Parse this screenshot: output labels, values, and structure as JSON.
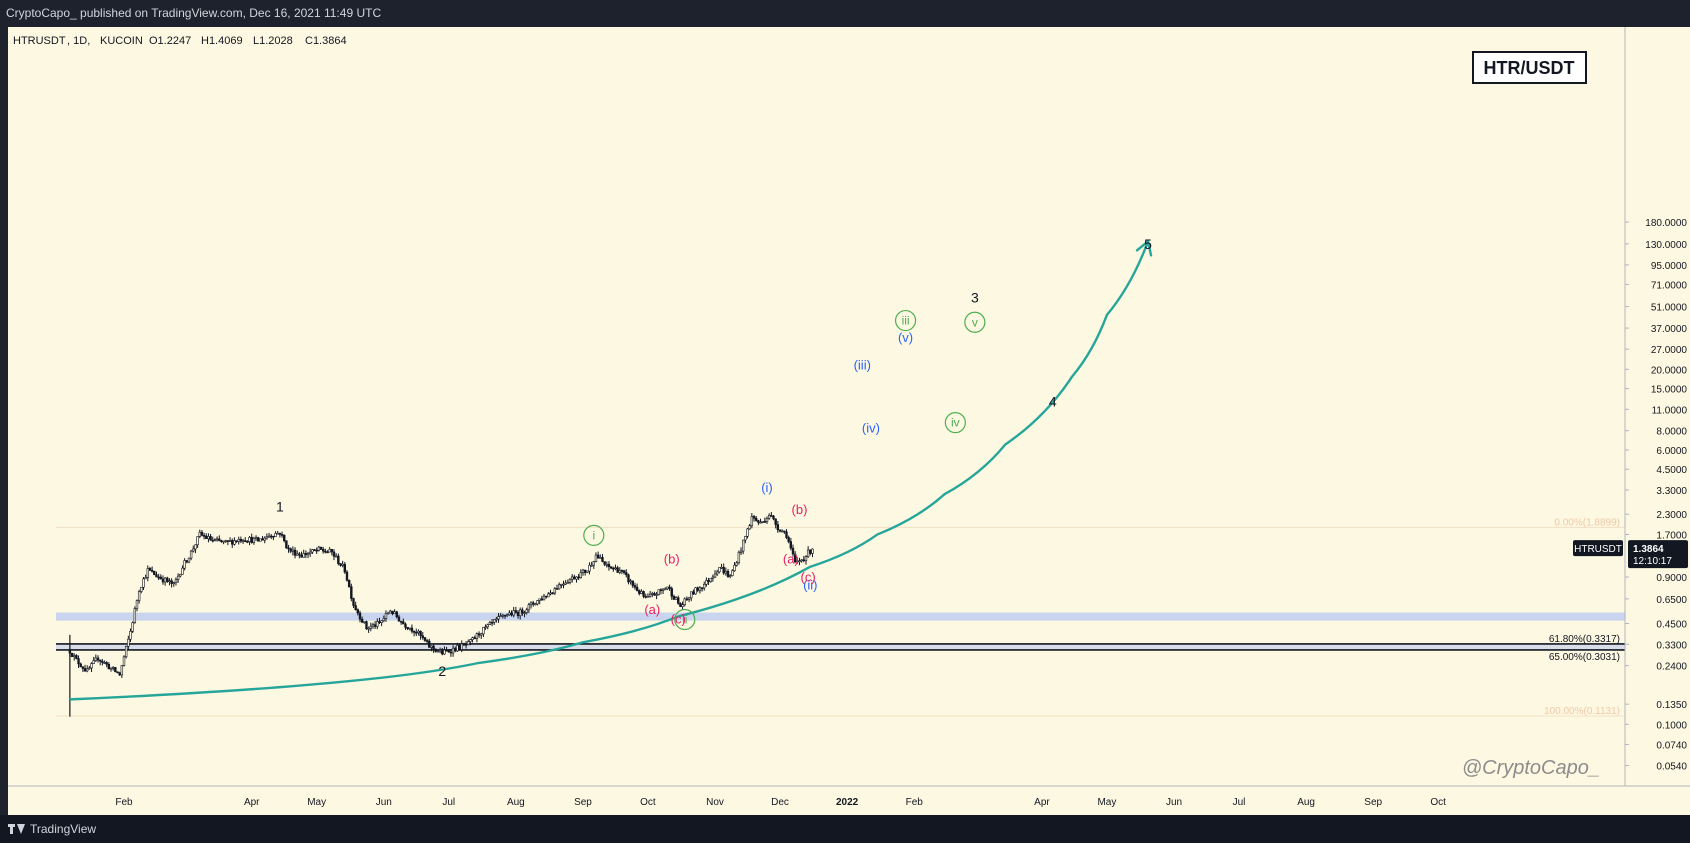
{
  "header": {
    "published_text": "CryptoCapo_ published on TradingView.com, Dec 16, 2021 11:49 UTC"
  },
  "footer": {
    "brand": "TradingView"
  },
  "symbol": {
    "name": "HTRUSDT",
    "interval": "1D",
    "exchange": "KUCOIN",
    "open": "O1.2247",
    "high": "H1.4069",
    "low": "L1.2028",
    "close": "C1.3864"
  },
  "badge": {
    "text": "HTR/USDT"
  },
  "watermark": {
    "text": "@CryptoCapo_"
  },
  "price_tag": {
    "symbol": "HTRUSDT",
    "price": "1.3864",
    "countdown": "12:10:17"
  },
  "colors": {
    "background": "#fdf8e1",
    "frame": "#1e222d",
    "candle": "#131722",
    "curve": "#26a69a",
    "zone": "#c9d4ee",
    "fib_high_line": "#f3dfc5",
    "green_label": "#4caf50",
    "blue_label": "#2962ff",
    "pink_label": "#e91e63",
    "black_label": "#131722"
  },
  "chart_data": {
    "type": "candlestick",
    "scale": "log",
    "x_axis_labels": [
      "Feb",
      "Apr",
      "May",
      "Jun",
      "Jul",
      "Aug",
      "Sep",
      "Oct",
      "Nov",
      "Dec",
      "2022",
      "Feb",
      "Apr",
      "May",
      "Jun",
      "Jul",
      "Aug",
      "Sep",
      "Oct"
    ],
    "y_axis_labels": [
      "180.0000",
      "130.0000",
      "95.0000",
      "71.0000",
      "51.0000",
      "37.0000",
      "27.0000",
      "20.0000",
      "15.0000",
      "11.0000",
      "8.0000",
      "6.0000",
      "4.5000",
      "3.3000",
      "2.3000",
      "1.7000",
      "0.9000",
      "0.6500",
      "0.4500",
      "0.3300",
      "0.2400",
      "0.1350",
      "0.1000",
      "0.0740",
      "0.0540"
    ],
    "price_path": [
      [
        "2021-01-07",
        0.3
      ],
      [
        "2021-01-10",
        0.26
      ],
      [
        "2021-01-15",
        0.22
      ],
      [
        "2021-01-20",
        0.27
      ],
      [
        "2021-01-26",
        0.23
      ],
      [
        "2021-01-30",
        0.21
      ],
      [
        "2021-02-04",
        0.4
      ],
      [
        "2021-02-08",
        0.75
      ],
      [
        "2021-02-12",
        1.0
      ],
      [
        "2021-02-16",
        0.92
      ],
      [
        "2021-02-24",
        0.8
      ],
      [
        "2021-02-28",
        1.05
      ],
      [
        "2021-03-04",
        1.3
      ],
      [
        "2021-03-08",
        1.7
      ],
      [
        "2021-03-14",
        1.55
      ],
      [
        "2021-03-20",
        1.5
      ],
      [
        "2021-03-28",
        1.6
      ],
      [
        "2021-04-04",
        1.55
      ],
      [
        "2021-04-10",
        1.7
      ],
      [
        "2021-04-14",
        1.75
      ],
      [
        "2021-04-18",
        1.35
      ],
      [
        "2021-04-24",
        1.25
      ],
      [
        "2021-05-02",
        1.35
      ],
      [
        "2021-05-08",
        1.3
      ],
      [
        "2021-05-14",
        1.0
      ],
      [
        "2021-05-18",
        0.6
      ],
      [
        "2021-05-24",
        0.42
      ],
      [
        "2021-05-30",
        0.45
      ],
      [
        "2021-06-04",
        0.55
      ],
      [
        "2021-06-10",
        0.45
      ],
      [
        "2021-06-16",
        0.4
      ],
      [
        "2021-06-22",
        0.32
      ],
      [
        "2021-06-28",
        0.29
      ],
      [
        "2021-07-04",
        0.31
      ],
      [
        "2021-07-10",
        0.33
      ],
      [
        "2021-07-16",
        0.4
      ],
      [
        "2021-07-22",
        0.46
      ],
      [
        "2021-07-28",
        0.52
      ],
      [
        "2021-08-03",
        0.53
      ],
      [
        "2021-08-10",
        0.62
      ],
      [
        "2021-08-16",
        0.7
      ],
      [
        "2021-08-22",
        0.82
      ],
      [
        "2021-08-28",
        0.9
      ],
      [
        "2021-09-03",
        1.0
      ],
      [
        "2021-09-07",
        1.25
      ],
      [
        "2021-09-12",
        1.05
      ],
      [
        "2021-09-18",
        1.0
      ],
      [
        "2021-09-24",
        0.8
      ],
      [
        "2021-09-30",
        0.65
      ],
      [
        "2021-10-06",
        0.72
      ],
      [
        "2021-10-10",
        0.78
      ],
      [
        "2021-10-16",
        0.58
      ],
      [
        "2021-10-22",
        0.72
      ],
      [
        "2021-10-28",
        0.83
      ],
      [
        "2021-11-03",
        1.05
      ],
      [
        "2021-11-08",
        0.9
      ],
      [
        "2021-11-14",
        1.5
      ],
      [
        "2021-11-18",
        2.2
      ],
      [
        "2021-11-22",
        2.0
      ],
      [
        "2021-11-26",
        2.3
      ],
      [
        "2021-11-30",
        1.9
      ],
      [
        "2021-12-04",
        1.7
      ],
      [
        "2021-12-08",
        1.1
      ],
      [
        "2021-12-12",
        1.2
      ],
      [
        "2021-12-16",
        1.3864
      ]
    ],
    "curve_points": [
      [
        "2021-01-07",
        0.145
      ],
      [
        "2021-05-15",
        0.19
      ],
      [
        "2021-07-15",
        0.25
      ],
      [
        "2021-09-01",
        0.34
      ],
      [
        "2021-10-15",
        0.5
      ],
      [
        "2021-12-15",
        1.05
      ],
      [
        "2022-01-15",
        1.7
      ],
      [
        "2022-02-15",
        3.1
      ],
      [
        "2022-03-15",
        6.5
      ],
      [
        "2022-04-15",
        18.0
      ],
      [
        "2022-05-01",
        45.0
      ],
      [
        "2022-05-20",
        135.0
      ]
    ],
    "wave_labels": [
      {
        "text": "1",
        "style": "black",
        "date": "2021-04-14",
        "price": 2.4
      },
      {
        "text": "2",
        "style": "black",
        "date": "2021-06-28",
        "price": 0.205
      },
      {
        "text": "3",
        "style": "black",
        "date": "2022-03-01",
        "price": 54.0
      },
      {
        "text": "4",
        "style": "black",
        "date": "2022-04-06",
        "price": 11.5
      },
      {
        "text": "5",
        "style": "black",
        "date": "2022-05-20",
        "price": 120.0
      },
      {
        "text": "i",
        "style": "green-circle",
        "date": "2021-09-06",
        "price": 1.58
      },
      {
        "text": "ii",
        "style": "green-circle",
        "date": "2021-10-18",
        "price": 0.45
      },
      {
        "text": "iii",
        "style": "green-circle",
        "date": "2022-01-28",
        "price": 39.0
      },
      {
        "text": "iv",
        "style": "green-circle",
        "date": "2022-02-20",
        "price": 8.5
      },
      {
        "text": "v",
        "style": "green-circle",
        "date": "2022-03-01",
        "price": 38.0
      },
      {
        "text": "(i)",
        "style": "blue",
        "date": "2021-11-25",
        "price": 3.2
      },
      {
        "text": "(ii)",
        "style": "blue",
        "date": "2021-12-15",
        "price": 0.75
      },
      {
        "text": "(iii)",
        "style": "blue",
        "date": "2022-01-08",
        "price": 20.0
      },
      {
        "text": "(iv)",
        "style": "blue",
        "date": "2022-01-12",
        "price": 7.8
      },
      {
        "text": "(v)",
        "style": "blue",
        "date": "2022-01-28",
        "price": 30.0
      },
      {
        "text": "(a)",
        "style": "pink",
        "date": "2021-10-03",
        "price": 0.52
      },
      {
        "text": "(b)",
        "style": "pink",
        "date": "2021-10-12",
        "price": 1.1
      },
      {
        "text": "(c)",
        "style": "pink",
        "date": "2021-10-15",
        "price": 0.45
      },
      {
        "text": "(a)",
        "style": "pink",
        "date": "2021-12-06",
        "price": 1.1
      },
      {
        "text": "(b)",
        "style": "pink",
        "date": "2021-12-10",
        "price": 2.3
      },
      {
        "text": "(c)",
        "style": "pink",
        "date": "2021-12-14",
        "price": 0.84
      }
    ],
    "fib_levels": [
      {
        "label": "0.00%(1.8899)",
        "price": 1.8899
      },
      {
        "label": "61.80%(0.3317)",
        "price": 0.3317
      },
      {
        "label": "65.00%(0.3031)",
        "price": 0.3031
      },
      {
        "label": "100.00%(0.1131)",
        "price": 0.1131
      }
    ],
    "zones": [
      {
        "low": 0.47,
        "high": 0.53,
        "color": "#c9d4ee"
      },
      {
        "low": 0.3031,
        "high": 0.3317,
        "color": "#d8dde8"
      }
    ],
    "current_price": 1.3864
  }
}
